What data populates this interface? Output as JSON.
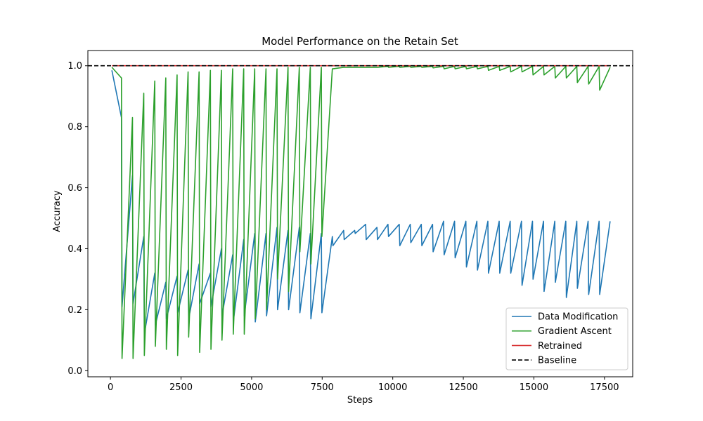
{
  "chart_data": {
    "type": "line",
    "title": "Model Performance on the Retain Set",
    "xlabel": "Steps",
    "ylabel": "Accuracy",
    "xlim": [
      -800,
      18500
    ],
    "ylim": [
      -0.02,
      1.05
    ],
    "xticks": [
      0,
      2500,
      5000,
      7500,
      10000,
      12500,
      15000,
      17500
    ],
    "yticks": [
      0.0,
      0.2,
      0.4,
      0.6,
      0.8,
      1.0
    ],
    "grid": false,
    "legend_position": "lower-right",
    "baseline": {
      "name": "Baseline",
      "value": 1.0,
      "color": "#000000",
      "style": "dashed"
    },
    "series": [
      {
        "name": "Data Modification",
        "color": "#1f77b4",
        "points": [
          [
            50,
            0.985
          ],
          [
            390,
            0.83
          ],
          [
            410,
            0.21
          ],
          [
            780,
            0.64
          ],
          [
            800,
            0.22
          ],
          [
            1180,
            0.44
          ],
          [
            1200,
            0.12
          ],
          [
            1570,
            0.32
          ],
          [
            1590,
            0.15
          ],
          [
            1960,
            0.29
          ],
          [
            1980,
            0.17
          ],
          [
            2360,
            0.31
          ],
          [
            2380,
            0.19
          ],
          [
            2750,
            0.33
          ],
          [
            2770,
            0.17
          ],
          [
            3140,
            0.35
          ],
          [
            3160,
            0.22
          ],
          [
            3540,
            0.32
          ],
          [
            3560,
            0.21
          ],
          [
            3930,
            0.4
          ],
          [
            3950,
            0.18
          ],
          [
            4330,
            0.38
          ],
          [
            4350,
            0.16
          ],
          [
            4720,
            0.43
          ],
          [
            4740,
            0.18
          ],
          [
            5110,
            0.45
          ],
          [
            5130,
            0.16
          ],
          [
            5510,
            0.45
          ],
          [
            5530,
            0.18
          ],
          [
            5900,
            0.47
          ],
          [
            5920,
            0.2
          ],
          [
            6290,
            0.46
          ],
          [
            6310,
            0.2
          ],
          [
            6690,
            0.47
          ],
          [
            6710,
            0.19
          ],
          [
            7080,
            0.45
          ],
          [
            7100,
            0.17
          ],
          [
            7470,
            0.45
          ],
          [
            7490,
            0.19
          ],
          [
            7860,
            0.44
          ],
          [
            7880,
            0.41
          ],
          [
            8260,
            0.46
          ],
          [
            8280,
            0.43
          ],
          [
            8650,
            0.46
          ],
          [
            8670,
            0.45
          ],
          [
            9040,
            0.48
          ],
          [
            9060,
            0.43
          ],
          [
            9440,
            0.47
          ],
          [
            9460,
            0.43
          ],
          [
            9830,
            0.48
          ],
          [
            9850,
            0.44
          ],
          [
            10230,
            0.48
          ],
          [
            10250,
            0.41
          ],
          [
            10620,
            0.48
          ],
          [
            10640,
            0.42
          ],
          [
            11010,
            0.48
          ],
          [
            11030,
            0.41
          ],
          [
            11410,
            0.48
          ],
          [
            11430,
            0.39
          ],
          [
            11800,
            0.49
          ],
          [
            11820,
            0.38
          ],
          [
            12190,
            0.49
          ],
          [
            12210,
            0.37
          ],
          [
            12590,
            0.49
          ],
          [
            12610,
            0.34
          ],
          [
            12980,
            0.49
          ],
          [
            13000,
            0.33
          ],
          [
            13370,
            0.49
          ],
          [
            13390,
            0.32
          ],
          [
            13770,
            0.49
          ],
          [
            13790,
            0.32
          ],
          [
            14160,
            0.49
          ],
          [
            14180,
            0.32
          ],
          [
            14560,
            0.49
          ],
          [
            14580,
            0.28
          ],
          [
            14950,
            0.49
          ],
          [
            14970,
            0.3
          ],
          [
            15340,
            0.49
          ],
          [
            15360,
            0.26
          ],
          [
            15740,
            0.49
          ],
          [
            15760,
            0.29
          ],
          [
            16130,
            0.49
          ],
          [
            16150,
            0.24
          ],
          [
            16520,
            0.49
          ],
          [
            16540,
            0.27
          ],
          [
            16920,
            0.49
          ],
          [
            16940,
            0.25
          ],
          [
            17310,
            0.49
          ],
          [
            17330,
            0.25
          ],
          [
            17700,
            0.49
          ]
        ]
      },
      {
        "name": "Gradient Ascent",
        "color": "#2ca02c",
        "points": [
          [
            50,
            0.995
          ],
          [
            390,
            0.96
          ],
          [
            410,
            0.04
          ],
          [
            780,
            0.83
          ],
          [
            800,
            0.04
          ],
          [
            1180,
            0.91
          ],
          [
            1200,
            0.05
          ],
          [
            1570,
            0.95
          ],
          [
            1590,
            0.08
          ],
          [
            1960,
            0.96
          ],
          [
            1980,
            0.07
          ],
          [
            2360,
            0.97
          ],
          [
            2380,
            0.05
          ],
          [
            2750,
            0.98
          ],
          [
            2770,
            0.11
          ],
          [
            3140,
            0.98
          ],
          [
            3160,
            0.06
          ],
          [
            3540,
            0.985
          ],
          [
            3560,
            0.07
          ],
          [
            3930,
            0.985
          ],
          [
            3950,
            0.1
          ],
          [
            4330,
            0.99
          ],
          [
            4350,
            0.12
          ],
          [
            4720,
            0.99
          ],
          [
            4740,
            0.12
          ],
          [
            5110,
            0.99
          ],
          [
            5130,
            0.17
          ],
          [
            5510,
            0.99
          ],
          [
            5530,
            0.2
          ],
          [
            5900,
            0.99
          ],
          [
            5920,
            0.3
          ],
          [
            6290,
            0.995
          ],
          [
            6310,
            0.26
          ],
          [
            6690,
            0.995
          ],
          [
            6710,
            0.39
          ],
          [
            7080,
            0.995
          ],
          [
            7100,
            0.35
          ],
          [
            7470,
            0.995
          ],
          [
            7490,
            0.44
          ],
          [
            7860,
            0.99
          ],
          [
            7880,
            0.99
          ],
          [
            8260,
            0.995
          ],
          [
            8280,
            0.995
          ],
          [
            8650,
            0.995
          ],
          [
            8670,
            0.995
          ],
          [
            9040,
            0.995
          ],
          [
            9060,
            0.995
          ],
          [
            9440,
            0.995
          ],
          [
            9460,
            0.995
          ],
          [
            9830,
            0.998
          ],
          [
            9850,
            0.995
          ],
          [
            10230,
            0.998
          ],
          [
            10250,
            0.995
          ],
          [
            10620,
            0.998
          ],
          [
            10640,
            0.995
          ],
          [
            11010,
            0.998
          ],
          [
            11030,
            0.995
          ],
          [
            11410,
            0.998
          ],
          [
            11430,
            0.993
          ],
          [
            11800,
            0.998
          ],
          [
            11820,
            0.99
          ],
          [
            12190,
            0.998
          ],
          [
            12210,
            0.99
          ],
          [
            12590,
            0.998
          ],
          [
            12610,
            0.99
          ],
          [
            12980,
            0.998
          ],
          [
            13000,
            0.99
          ],
          [
            13370,
            0.998
          ],
          [
            13390,
            0.985
          ],
          [
            13770,
            0.998
          ],
          [
            13790,
            0.985
          ],
          [
            14160,
            0.998
          ],
          [
            14180,
            0.98
          ],
          [
            14560,
            0.998
          ],
          [
            14580,
            0.98
          ],
          [
            14950,
            0.998
          ],
          [
            14970,
            0.97
          ],
          [
            15340,
            0.998
          ],
          [
            15360,
            0.97
          ],
          [
            15740,
            0.998
          ],
          [
            15760,
            0.96
          ],
          [
            16130,
            0.998
          ],
          [
            16150,
            0.96
          ],
          [
            16520,
            0.998
          ],
          [
            16540,
            0.945
          ],
          [
            16920,
            0.998
          ],
          [
            16940,
            0.94
          ],
          [
            17310,
            0.998
          ],
          [
            17330,
            0.92
          ],
          [
            17700,
            0.995
          ]
        ]
      },
      {
        "name": "Retrained",
        "color": "#d62728",
        "points": [
          [
            50,
            1.0
          ],
          [
            17700,
            1.0
          ]
        ]
      }
    ]
  }
}
